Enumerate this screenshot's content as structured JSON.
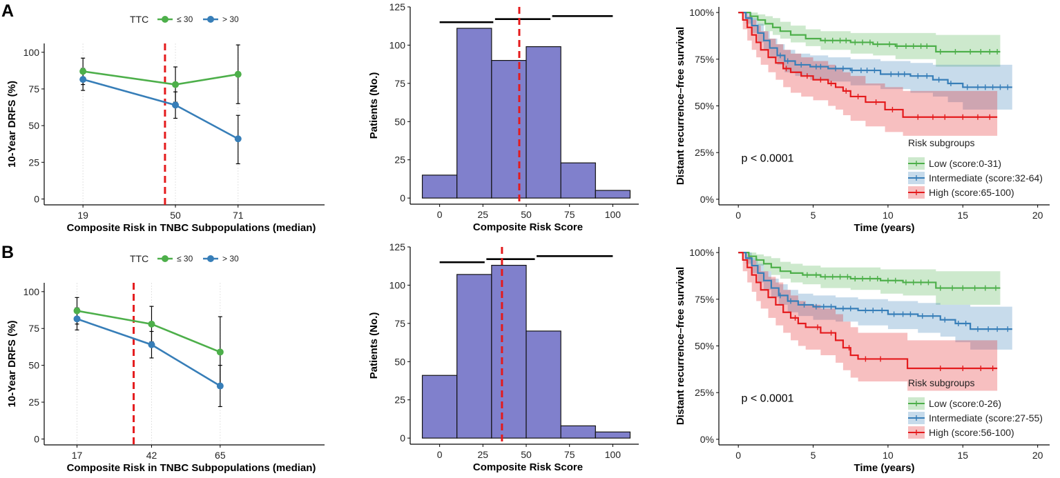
{
  "panel_labels": [
    "A",
    "B"
  ],
  "colors": {
    "low": "#4daf4a",
    "intermediate": "#377eb8",
    "high": "#e41a1c",
    "bar_fill": "#8080cc",
    "cutoff": "#e41a1c"
  },
  "chart_data": [
    {
      "id": "A-line",
      "type": "line",
      "panel": "A",
      "legend_title": "TTC",
      "xlabel": "Composite Risk in TNBC Subpopulations (median)",
      "ylabel": "10-Year DRFS (%)",
      "categories": [
        "19",
        "50",
        "71"
      ],
      "x": [
        19,
        50,
        71
      ],
      "xlim": [
        6,
        100
      ],
      "ylim": [
        -4,
        106
      ],
      "yticks": [
        0,
        25,
        50,
        75,
        100
      ],
      "cutoff_x": 46.5,
      "series": [
        {
          "name": "≤ 30",
          "color": "#4daf4a",
          "values": [
            87,
            78,
            85
          ],
          "err_low": [
            78,
            66,
            65
          ],
          "err_high": [
            96,
            90,
            105
          ]
        },
        {
          "name": "> 30",
          "color": "#377eb8",
          "values": [
            81.5,
            64,
            41
          ],
          "err_low": [
            74,
            55,
            24
          ],
          "err_high": [
            89,
            73,
            57
          ]
        }
      ]
    },
    {
      "id": "A-hist",
      "type": "bar",
      "panel": "A",
      "xlabel": "Composite Risk Score",
      "ylabel": "Patients (No.)",
      "bin_edges": [
        -10,
        10,
        30,
        50,
        70,
        90,
        110
      ],
      "values": [
        15,
        111,
        90,
        99,
        23,
        5
      ],
      "xlim": [
        -17,
        115
      ],
      "ylim": [
        -4,
        125
      ],
      "xticks": [
        0,
        25,
        50,
        75,
        100
      ],
      "yticks": [
        0,
        25,
        50,
        75,
        100,
        125
      ],
      "cutoff_x": 46,
      "brackets": [
        {
          "from": 0,
          "to": 31,
          "y": 115
        },
        {
          "from": 32,
          "to": 64,
          "y": 117
        },
        {
          "from": 65,
          "to": 100,
          "y": 119
        }
      ]
    },
    {
      "id": "A-km",
      "type": "line",
      "panel": "A",
      "xlabel": "Time (years)",
      "ylabel": "Distant recurrence–free survival",
      "xlim": [
        -1.3,
        20.8
      ],
      "ylim": [
        -0.03,
        1.03
      ],
      "xticks": [
        0,
        5,
        10,
        15,
        20
      ],
      "yticks": [
        0,
        0.25,
        0.5,
        0.75,
        1.0
      ],
      "ytick_labels": [
        "0%",
        "25%",
        "50%",
        "75%",
        "100%"
      ],
      "p_value": "p < 0.0001",
      "legend_title": "Risk subgroups",
      "series": [
        {
          "name": "Low (score:0-31)",
          "color": "#4daf4a",
          "time": [
            0,
            0.8,
            1.3,
            1.8,
            2.3,
            2.8,
            3.5,
            4.5,
            5.5,
            7.5,
            9,
            10.5,
            13.2,
            17.5
          ],
          "surv": [
            1,
            0.98,
            0.96,
            0.94,
            0.92,
            0.9,
            0.88,
            0.86,
            0.85,
            0.84,
            0.83,
            0.82,
            0.79,
            0.79
          ],
          "lower": [
            1,
            0.96,
            0.93,
            0.9,
            0.88,
            0.86,
            0.84,
            0.82,
            0.8,
            0.78,
            0.77,
            0.75,
            0.71,
            0.71
          ],
          "upper": [
            1,
            1,
            0.99,
            0.98,
            0.97,
            0.95,
            0.93,
            0.91,
            0.9,
            0.89,
            0.89,
            0.89,
            0.88,
            0.88
          ],
          "censor": [
            5.8,
            6.3,
            6.8,
            7.2,
            7.8,
            8.3,
            8.8,
            9.3,
            10.1,
            10.6,
            11.2,
            11.7,
            12.2,
            12.6,
            13.5,
            14.5,
            15.5,
            16.2,
            16.8,
            17.3
          ]
        },
        {
          "name": "Intermediate (score:32-64)",
          "color": "#377eb8",
          "time": [
            0,
            0.5,
            0.9,
            1.3,
            1.7,
            2.1,
            2.6,
            3.1,
            3.8,
            4.8,
            6,
            7.5,
            9.5,
            11.5,
            13,
            14,
            15,
            18.3
          ],
          "surv": [
            1,
            0.97,
            0.93,
            0.89,
            0.85,
            0.81,
            0.77,
            0.74,
            0.72,
            0.71,
            0.7,
            0.69,
            0.67,
            0.66,
            0.64,
            0.62,
            0.6,
            0.6
          ],
          "lower": [
            1,
            0.94,
            0.89,
            0.84,
            0.8,
            0.76,
            0.72,
            0.68,
            0.66,
            0.64,
            0.63,
            0.61,
            0.59,
            0.57,
            0.55,
            0.52,
            0.48,
            0.48
          ],
          "upper": [
            1,
            1,
            0.97,
            0.94,
            0.9,
            0.86,
            0.83,
            0.8,
            0.78,
            0.77,
            0.76,
            0.75,
            0.74,
            0.73,
            0.72,
            0.72,
            0.72,
            0.72
          ],
          "censor": [
            2.8,
            3.3,
            4.2,
            5.2,
            5.5,
            6.5,
            7,
            7.6,
            8.2,
            8.6,
            9.1,
            10.2,
            10.7,
            11.1,
            12,
            12.6,
            13.4,
            14.2,
            15.3,
            16,
            16.5,
            17,
            17.5,
            18
          ]
        },
        {
          "name": "High (score:65-100)",
          "color": "#e41a1c",
          "time": [
            0,
            0.3,
            0.6,
            0.9,
            1.2,
            1.5,
            2,
            2.5,
            3,
            3.5,
            4.2,
            5,
            6,
            6.5,
            7,
            7.5,
            8.5,
            9.8,
            11,
            17.3
          ],
          "surv": [
            1,
            0.96,
            0.92,
            0.88,
            0.84,
            0.8,
            0.76,
            0.73,
            0.7,
            0.68,
            0.66,
            0.64,
            0.62,
            0.6,
            0.58,
            0.55,
            0.52,
            0.48,
            0.44,
            0.44
          ],
          "lower": [
            1,
            0.91,
            0.85,
            0.8,
            0.76,
            0.72,
            0.68,
            0.64,
            0.6,
            0.57,
            0.55,
            0.53,
            0.5,
            0.48,
            0.45,
            0.42,
            0.39,
            0.36,
            0.34,
            0.34
          ],
          "upper": [
            1,
            1,
            0.98,
            0.96,
            0.93,
            0.9,
            0.86,
            0.83,
            0.8,
            0.78,
            0.76,
            0.74,
            0.72,
            0.7,
            0.68,
            0.66,
            0.62,
            0.6,
            0.58,
            0.58
          ],
          "censor": [
            3.2,
            4.6,
            5.5,
            6.2,
            7.2,
            8,
            9.2,
            10.3,
            12,
            13,
            13.8,
            15,
            16,
            16.8
          ]
        }
      ]
    },
    {
      "id": "B-line",
      "type": "line",
      "panel": "B",
      "legend_title": "TTC",
      "xlabel": "Composite Risk in TNBC Subpopulations (median)",
      "ylabel": "10-Year DRFS (%)",
      "categories": [
        "17",
        "42",
        "65"
      ],
      "x": [
        17,
        42,
        65
      ],
      "xlim": [
        6,
        100
      ],
      "ylim": [
        -4,
        106
      ],
      "yticks": [
        0,
        25,
        50,
        75,
        100
      ],
      "cutoff_x": 36,
      "series": [
        {
          "name": "≤ 30",
          "color": "#4daf4a",
          "values": [
            87,
            78,
            59
          ],
          "err_low": [
            78,
            66,
            35
          ],
          "err_high": [
            96,
            90,
            83
          ]
        },
        {
          "name": "> 30",
          "color": "#377eb8",
          "values": [
            81.5,
            64,
            36
          ],
          "err_low": [
            74,
            55,
            22
          ],
          "err_high": [
            89,
            73,
            50
          ]
        }
      ]
    },
    {
      "id": "B-hist",
      "type": "bar",
      "panel": "B",
      "xlabel": "Composite Risk Score",
      "ylabel": "Patients (No.)",
      "bin_edges": [
        -10,
        10,
        30,
        50,
        70,
        90,
        110
      ],
      "values": [
        41,
        107,
        113,
        70,
        8,
        4
      ],
      "xlim": [
        -17,
        115
      ],
      "ylim": [
        -4,
        125
      ],
      "xticks": [
        0,
        25,
        50,
        75,
        100
      ],
      "yticks": [
        0,
        25,
        50,
        75,
        100,
        125
      ],
      "cutoff_x": 36,
      "brackets": [
        {
          "from": 0,
          "to": 26,
          "y": 115
        },
        {
          "from": 27,
          "to": 55,
          "y": 117
        },
        {
          "from": 56,
          "to": 100,
          "y": 119
        }
      ]
    },
    {
      "id": "B-km",
      "type": "line",
      "panel": "B",
      "xlabel": "Time (years)",
      "ylabel": "Distant recurrence–free survival",
      "xlim": [
        -1.3,
        20.8
      ],
      "ylim": [
        -0.03,
        1.03
      ],
      "xticks": [
        0,
        5,
        10,
        15,
        20
      ],
      "yticks": [
        0,
        0.25,
        0.5,
        0.75,
        1.0
      ],
      "ytick_labels": [
        "0%",
        "25%",
        "50%",
        "75%",
        "100%"
      ],
      "p_value": "p < 0.0001",
      "legend_title": "Risk subgroups",
      "series": [
        {
          "name": "Low (score:0-26)",
          "color": "#4daf4a",
          "time": [
            0,
            0.7,
            1.2,
            1.7,
            2.2,
            2.8,
            3.5,
            4.3,
            5.5,
            7.5,
            9.5,
            11,
            13.2,
            17.5
          ],
          "surv": [
            1,
            0.98,
            0.96,
            0.94,
            0.92,
            0.9,
            0.89,
            0.88,
            0.87,
            0.86,
            0.85,
            0.84,
            0.81,
            0.81
          ],
          "lower": [
            1,
            0.96,
            0.93,
            0.9,
            0.88,
            0.86,
            0.84,
            0.83,
            0.81,
            0.8,
            0.78,
            0.77,
            0.72,
            0.72
          ],
          "upper": [
            1,
            1,
            0.99,
            0.98,
            0.97,
            0.95,
            0.94,
            0.93,
            0.92,
            0.92,
            0.91,
            0.91,
            0.9,
            0.9
          ],
          "censor": [
            4.6,
            5.2,
            5.8,
            6.3,
            6.8,
            7.3,
            7.8,
            8.3,
            8.8,
            9.3,
            10,
            10.5,
            11.2,
            11.7,
            12.2,
            12.7,
            13.5,
            14.3,
            15,
            15.8,
            16.5,
            17.2
          ]
        },
        {
          "name": "Intermediate (score:27-55)",
          "color": "#377eb8",
          "time": [
            0,
            0.5,
            0.9,
            1.3,
            1.7,
            2.2,
            2.7,
            3.3,
            4,
            5,
            6.5,
            8,
            10,
            12,
            13.5,
            14.5,
            15.5,
            18.3
          ],
          "surv": [
            1,
            0.97,
            0.93,
            0.89,
            0.85,
            0.81,
            0.77,
            0.74,
            0.72,
            0.71,
            0.7,
            0.69,
            0.67,
            0.66,
            0.64,
            0.62,
            0.59,
            0.59
          ],
          "lower": [
            1,
            0.94,
            0.89,
            0.84,
            0.8,
            0.76,
            0.72,
            0.68,
            0.66,
            0.64,
            0.63,
            0.61,
            0.59,
            0.57,
            0.55,
            0.52,
            0.48,
            0.48
          ],
          "upper": [
            1,
            1,
            0.97,
            0.94,
            0.9,
            0.86,
            0.83,
            0.8,
            0.78,
            0.77,
            0.76,
            0.75,
            0.74,
            0.73,
            0.72,
            0.72,
            0.71,
            0.71
          ],
          "censor": [
            2.8,
            3.5,
            4.4,
            5.2,
            5.7,
            6.2,
            7,
            7.5,
            8.5,
            9,
            9.6,
            10.4,
            11,
            11.5,
            12.3,
            13,
            13.8,
            14.7,
            15.2,
            16,
            16.7,
            17.3,
            18
          ]
        },
        {
          "name": "High (score:56-100)",
          "color": "#e41a1c",
          "time": [
            0,
            0.3,
            0.6,
            0.9,
            1.2,
            1.5,
            2,
            2.5,
            3,
            3.5,
            4,
            4.5,
            5.5,
            6.5,
            7,
            7.5,
            8,
            11.3,
            17.3
          ],
          "surv": [
            1,
            0.96,
            0.92,
            0.88,
            0.84,
            0.8,
            0.76,
            0.72,
            0.68,
            0.65,
            0.62,
            0.6,
            0.57,
            0.53,
            0.49,
            0.45,
            0.43,
            0.38,
            0.38
          ],
          "lower": [
            1,
            0.9,
            0.84,
            0.79,
            0.74,
            0.7,
            0.65,
            0.61,
            0.57,
            0.53,
            0.5,
            0.48,
            0.45,
            0.41,
            0.37,
            0.33,
            0.31,
            0.26,
            0.26
          ],
          "upper": [
            1,
            1,
            0.98,
            0.96,
            0.93,
            0.9,
            0.87,
            0.84,
            0.8,
            0.77,
            0.74,
            0.72,
            0.7,
            0.67,
            0.63,
            0.6,
            0.57,
            0.53,
            0.53
          ],
          "censor": [
            3.8,
            5.3,
            6.2,
            7.4,
            8.5,
            9.5,
            13.5,
            15,
            16.2,
            17
          ]
        }
      ]
    }
  ]
}
